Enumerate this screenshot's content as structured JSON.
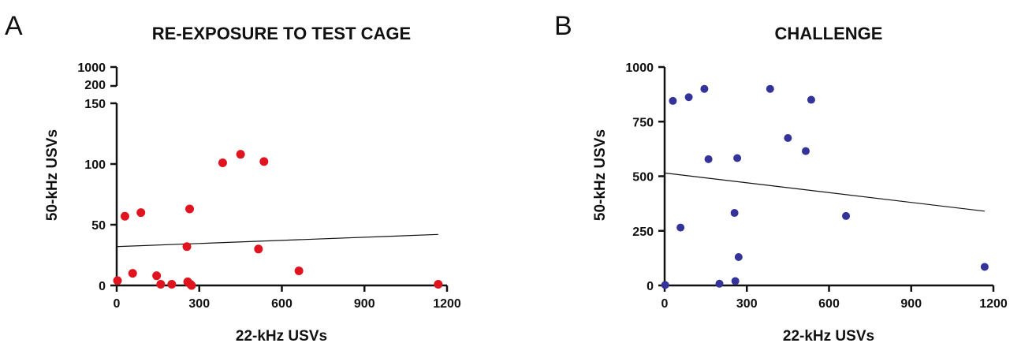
{
  "chart_data": [
    {
      "panel": "A",
      "type": "scatter",
      "title": "RE-EXPOSURE TO TEST CAGE",
      "xlabel": "22-kHz USVs",
      "ylabel": "50-kHz USVs",
      "xlim": [
        0,
        1200
      ],
      "ylim": [
        0,
        150
      ],
      "y_break": {
        "upper_ticks": [
          200,
          1000
        ]
      },
      "xticks": [
        0,
        300,
        600,
        900,
        1200
      ],
      "yticks": [
        0,
        50,
        100,
        150
      ],
      "grid": false,
      "point_color": "#e0141e",
      "series": [
        {
          "points": [
            {
              "x": 3,
              "y": 4
            },
            {
              "x": 30,
              "y": 57
            },
            {
              "x": 58,
              "y": 10
            },
            {
              "x": 88,
              "y": 60
            },
            {
              "x": 145,
              "y": 8
            },
            {
              "x": 160,
              "y": 1
            },
            {
              "x": 200,
              "y": 1
            },
            {
              "x": 255,
              "y": 32
            },
            {
              "x": 258,
              "y": 3
            },
            {
              "x": 265,
              "y": 63
            },
            {
              "x": 268,
              "y": 1
            },
            {
              "x": 272,
              "y": 0
            },
            {
              "x": 385,
              "y": 101
            },
            {
              "x": 450,
              "y": 108
            },
            {
              "x": 515,
              "y": 30
            },
            {
              "x": 535,
              "y": 102
            },
            {
              "x": 662,
              "y": 12
            },
            {
              "x": 1168,
              "y": 1
            }
          ]
        }
      ],
      "fit_line": {
        "x": [
          0,
          1168
        ],
        "y": [
          32,
          42
        ]
      }
    },
    {
      "panel": "B",
      "type": "scatter",
      "title": "CHALLENGE",
      "xlabel": "22-kHz USVs",
      "ylabel": "50-kHz USVs",
      "xlim": [
        0,
        1200
      ],
      "ylim": [
        0,
        1000
      ],
      "xticks": [
        0,
        300,
        600,
        900,
        1200
      ],
      "yticks": [
        0,
        250,
        500,
        750,
        1000
      ],
      "grid": false,
      "point_color": "#333399",
      "series": [
        {
          "points": [
            {
              "x": 2,
              "y": 2
            },
            {
              "x": 30,
              "y": 845
            },
            {
              "x": 58,
              "y": 265
            },
            {
              "x": 88,
              "y": 862
            },
            {
              "x": 145,
              "y": 900
            },
            {
              "x": 160,
              "y": 578
            },
            {
              "x": 200,
              "y": 8
            },
            {
              "x": 255,
              "y": 332
            },
            {
              "x": 258,
              "y": 20
            },
            {
              "x": 265,
              "y": 583
            },
            {
              "x": 270,
              "y": 130
            },
            {
              "x": 385,
              "y": 900
            },
            {
              "x": 450,
              "y": 675
            },
            {
              "x": 515,
              "y": 615
            },
            {
              "x": 535,
              "y": 850
            },
            {
              "x": 662,
              "y": 318
            },
            {
              "x": 1168,
              "y": 85
            }
          ]
        }
      ],
      "fit_line": {
        "x": [
          0,
          1168
        ],
        "y": [
          515,
          340
        ]
      }
    }
  ]
}
